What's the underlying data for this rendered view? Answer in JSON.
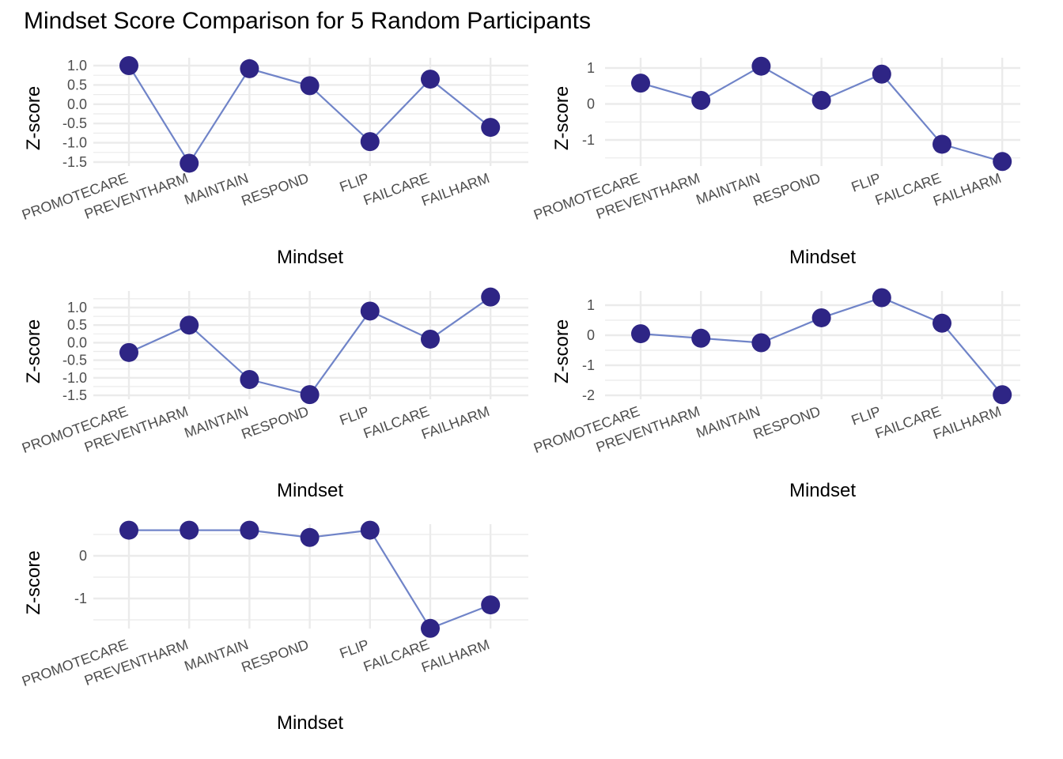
{
  "title": "Mindset Score Comparison for 5 Random Participants",
  "colors": {
    "line": "#7084c8",
    "point": "#2e2585",
    "grid": "#ebebeb",
    "tick_text": "#4d4d4d"
  },
  "chart_data": [
    {
      "type": "line",
      "categories": [
        "PROMOTECARE",
        "PREVENTHARM",
        "MAINTAIN",
        "RESPOND",
        "FLIP",
        "FAILCARE",
        "FAILHARM"
      ],
      "values": [
        1.0,
        -1.53,
        0.92,
        0.48,
        -0.97,
        0.65,
        -0.6
      ],
      "xlabel": "Mindset",
      "ylabel": "Z-score",
      "ylim": [
        -1.5,
        1.0
      ],
      "yticks": [
        1.0,
        0.5,
        0.0,
        -0.5,
        -1.0,
        -1.5
      ],
      "ytick_labels": [
        "1.0",
        "0.5",
        "0.0",
        "-0.5",
        "-1.0",
        "-1.5"
      ],
      "grid": true
    },
    {
      "type": "line",
      "categories": [
        "PROMOTECARE",
        "PREVENTHARM",
        "MAINTAIN",
        "RESPOND",
        "FLIP",
        "FAILCARE",
        "FAILHARM"
      ],
      "values": [
        0.58,
        0.1,
        1.05,
        0.1,
        0.83,
        -1.12,
        -1.6
      ],
      "xlabel": "Mindset",
      "ylabel": "Z-score",
      "ylim": [
        -1.5,
        1.0
      ],
      "yticks": [
        1,
        0,
        -1
      ],
      "ytick_labels": [
        "1",
        "0",
        "-1"
      ],
      "grid": true
    },
    {
      "type": "line",
      "categories": [
        "PROMOTECARE",
        "PREVENTHARM",
        "MAINTAIN",
        "RESPOND",
        "FLIP",
        "FAILCARE",
        "FAILHARM"
      ],
      "values": [
        -0.28,
        0.5,
        -1.05,
        -1.48,
        0.9,
        0.1,
        1.3
      ],
      "xlabel": "Mindset",
      "ylabel": "Z-score",
      "ylim": [
        -1.5,
        1.0
      ],
      "yticks": [
        1.0,
        0.5,
        0.0,
        -0.5,
        -1.0,
        -1.5
      ],
      "ytick_labels": [
        "1.0",
        "0.5",
        "0.0",
        "-0.5",
        "-1.0",
        "-1.5"
      ],
      "grid": true
    },
    {
      "type": "line",
      "categories": [
        "PROMOTECARE",
        "PREVENTHARM",
        "MAINTAIN",
        "RESPOND",
        "FLIP",
        "FAILCARE",
        "FAILHARM"
      ],
      "values": [
        0.05,
        -0.1,
        -0.25,
        0.58,
        1.25,
        0.4,
        -1.98
      ],
      "xlabel": "Mindset",
      "ylabel": "Z-score",
      "ylim": [
        -2,
        1
      ],
      "yticks": [
        1,
        0,
        -1,
        -2
      ],
      "ytick_labels": [
        "1",
        "0",
        "-1",
        "-2"
      ],
      "grid": true
    },
    {
      "type": "line",
      "categories": [
        "PROMOTECARE",
        "PREVENTHARM",
        "MAINTAIN",
        "RESPOND",
        "FLIP",
        "FAILCARE",
        "FAILHARM"
      ],
      "values": [
        0.6,
        0.6,
        0.6,
        0.43,
        0.6,
        -1.7,
        -1.15
      ],
      "xlabel": "Mindset",
      "ylabel": "Z-score",
      "ylim": [
        -1.5,
        0.5
      ],
      "yticks": [
        0,
        -1
      ],
      "ytick_labels": [
        "0",
        "-1"
      ],
      "grid": true
    }
  ]
}
